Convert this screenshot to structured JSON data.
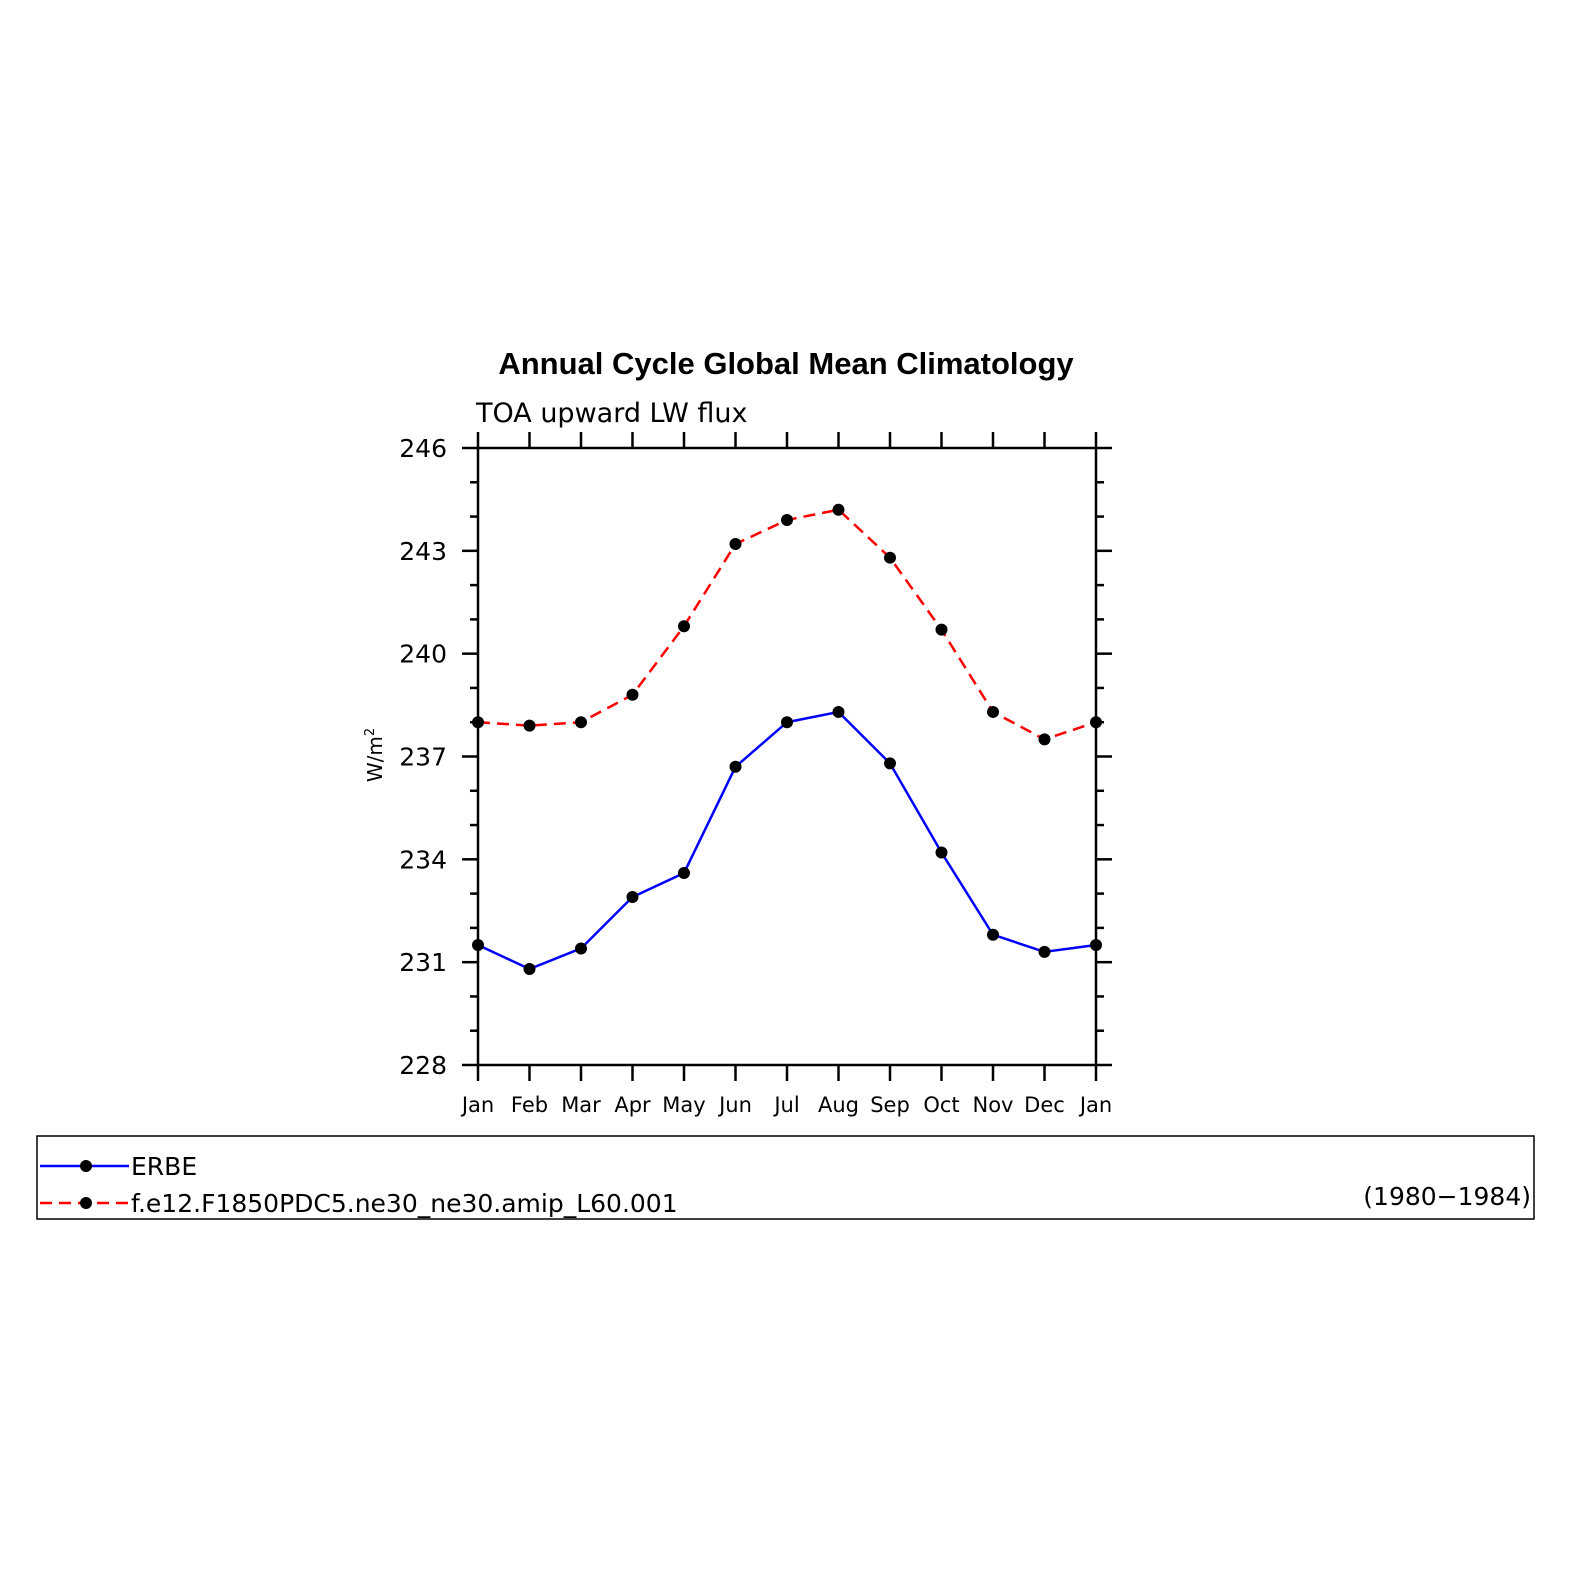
{
  "chart_data": {
    "type": "line",
    "title": "Annual Cycle Global Mean Climatology",
    "subtitle": "TOA upward LW flux",
    "ylabel": "W/m",
    "ylabel_sup": "2",
    "xlabel": "",
    "ylim": [
      228,
      246
    ],
    "yticks": [
      228,
      231,
      234,
      237,
      240,
      243,
      246
    ],
    "y_minor_step": 1,
    "categories": [
      "Jan",
      "Feb",
      "Mar",
      "Apr",
      "May",
      "Jun",
      "Jul",
      "Aug",
      "Sep",
      "Oct",
      "Nov",
      "Dec",
      "Jan"
    ],
    "grid": false,
    "legend_position": "bottom",
    "series": [
      {
        "name": "ERBE",
        "color": "#0000ff",
        "dash": "solid",
        "values": [
          231.5,
          230.8,
          231.4,
          232.9,
          233.6,
          236.7,
          238.0,
          238.3,
          236.8,
          234.2,
          231.8,
          231.3,
          231.5
        ]
      },
      {
        "name": "f.e12.F1850PDC5.ne30_ne30.amip_L60.001",
        "color": "#ff0000",
        "dash": "dashed",
        "values": [
          238.0,
          237.9,
          238.0,
          238.8,
          240.8,
          243.2,
          243.9,
          244.2,
          242.8,
          240.7,
          238.3,
          237.5,
          238.0
        ]
      }
    ],
    "legend_note": "(1980−1984)"
  }
}
